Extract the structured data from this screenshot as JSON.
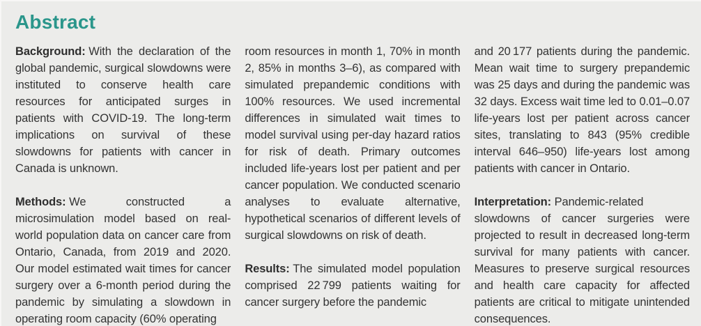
{
  "theme": {
    "accent_color": "#2b968b",
    "background_color": "#ececea",
    "text_color": "#333333"
  },
  "abstract": {
    "title": "Abstract",
    "columns": [
      {
        "paragraphs": [
          {
            "label": "Background:",
            "text": "With the declaration of the global pandemic, surgical slowdowns were instituted to conserve health care resources for anticipated surges in patients with COVID-19. The long-term implications on survival of these slowdowns for patients with cancer in Canada is unknown."
          },
          {
            "label": "Methods:",
            "text": "We constructed a microsimulation model based on real-world population data on cancer care from Ontario, Canada, from 2019 and 2020. Our model estimated wait times for cancer surgery over a 6-month period during the pandemic by simulating a slowdown in operating room capacity (60% operating"
          }
        ]
      },
      {
        "paragraphs": [
          {
            "label": "",
            "text": "room resources in month 1, 70% in month 2, 85% in months 3–6), as compared with simulated prepandemic conditions with 100% resources. We used incremental differences in simulated wait times to model survival using per-day hazard ratios for risk of death. Primary outcomes included life-years lost per patient and per cancer population. We conducted scenario analyses to evaluate alternative, hypothetical scenarios of different levels of surgical slowdowns on risk of death."
          },
          {
            "label": "Results:",
            "text": "The simulated model population comprised 22 799 patients waiting for cancer surgery before the pandemic"
          }
        ]
      },
      {
        "paragraphs": [
          {
            "label": "",
            "text": "and 20 177 patients during the pandemic. Mean wait time to surgery prepandemic was 25 days and during the pandemic was 32 days. Excess wait time led to 0.01–0.07 life-years lost per patient across cancer sites, translating to 843 (95% credible interval 646–950) life-years lost among patients with cancer in Ontario."
          },
          {
            "label": "Interpretation:",
            "text": "Pandemic-related slowdowns of cancer surgeries were projected to result in decreased long-term survival for many patients with cancer. Measures to preserve surgical resources and health care capacity for affected patients are critical to mitigate unintended consequences."
          }
        ]
      }
    ]
  }
}
